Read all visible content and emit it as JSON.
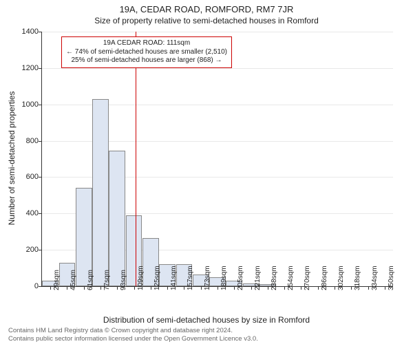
{
  "chart": {
    "type": "histogram",
    "title_main": "19A, CEDAR ROAD, ROMFORD, RM7 7JR",
    "title_sub": "Size of property relative to semi-detached houses in Romford",
    "ylabel": "Number of semi-detached properties",
    "xlabel": "Distribution of semi-detached houses by size in Romford",
    "y_axis": {
      "min": 0,
      "max": 1400,
      "ticks": [
        0,
        200,
        400,
        600,
        800,
        1000,
        1200,
        1400
      ]
    },
    "x_axis": {
      "categories": [
        "29sqm",
        "45sqm",
        "61sqm",
        "77sqm",
        "93sqm",
        "109sqm",
        "125sqm",
        "141sqm",
        "157sqm",
        "173sqm",
        "189sqm",
        "205sqm",
        "221sqm",
        "238sqm",
        "254sqm",
        "270sqm",
        "286sqm",
        "302sqm",
        "318sqm",
        "334sqm",
        "350sqm"
      ]
    },
    "bars": {
      "values": [
        30,
        130,
        540,
        1030,
        745,
        390,
        265,
        120,
        120,
        65,
        50,
        30,
        15,
        10,
        0,
        0,
        0,
        0,
        0,
        0,
        0
      ],
      "fill_color": "#dde5f2",
      "border_color": "#888888"
    },
    "reference_line": {
      "value_sqm": 111,
      "color": "#cc0000"
    },
    "annotation": {
      "line1": "19A CEDAR ROAD: 111sqm",
      "line2": "← 74% of semi-detached houses are smaller (2,510)",
      "line3": "25% of semi-detached houses are larger (868) →",
      "border_color": "#cc0000",
      "background_color": "#ffffff"
    },
    "grid_color": "#e8e8e8",
    "background_color": "#ffffff",
    "tick_fontsize": 11,
    "label_fontsize": 12,
    "title_fontsize": 13
  },
  "footer": {
    "line1": "Contains HM Land Registry data © Crown copyright and database right 2024.",
    "line2": "Contains public sector information licensed under the Open Government Licence v3.0."
  }
}
